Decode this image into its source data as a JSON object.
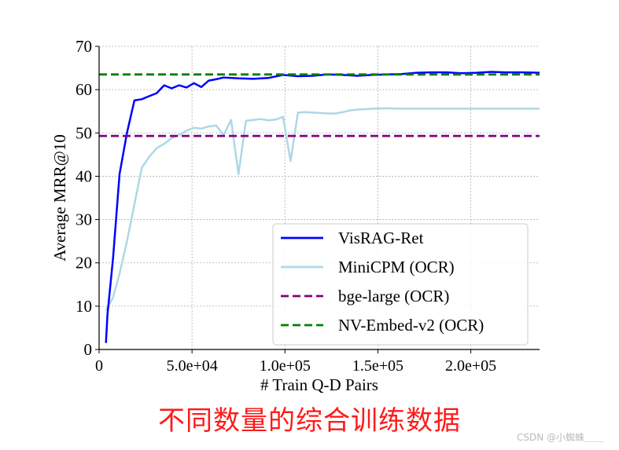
{
  "chart_data": {
    "type": "line",
    "xlabel": "# Train Q-D Pairs",
    "ylabel": "Average MRR@10",
    "xlim": [
      0,
      237000
    ],
    "ylim": [
      0,
      70
    ],
    "grid": true,
    "legend_position": "bottom-right",
    "x_ticks": [
      {
        "value": 0,
        "label": "0"
      },
      {
        "value": 50000,
        "label": "5.0e+04"
      },
      {
        "value": 100000,
        "label": "1.0e+05"
      },
      {
        "value": 150000,
        "label": "1.5e+05"
      },
      {
        "value": 200000,
        "label": "2.0e+05"
      }
    ],
    "y_ticks": [
      0,
      10,
      20,
      30,
      40,
      50,
      60,
      70
    ],
    "series": [
      {
        "name": "VisRAG-Ret",
        "color": "#0000ff",
        "dash": "solid",
        "x": [
          3700,
          4500,
          7500,
          11000,
          15000,
          19000,
          23000,
          27000,
          31000,
          35000,
          39000,
          43000,
          47000,
          51000,
          55000,
          59000,
          63000,
          67000,
          75000,
          83000,
          91000,
          99000,
          107000,
          115000,
          123000,
          131000,
          139000,
          147000,
          155000,
          163000,
          171000,
          179000,
          187000,
          195000,
          203000,
          211000,
          219000,
          227000,
          237000
        ],
        "y": [
          1.5,
          8,
          21,
          40.5,
          50,
          57.5,
          57.8,
          58.5,
          59.2,
          61,
          60.3,
          61,
          60.5,
          61.5,
          60.6,
          62.1,
          62.4,
          62.8,
          62.6,
          62.5,
          62.7,
          63.4,
          63.1,
          63.2,
          63.5,
          63.4,
          63.2,
          63.4,
          63.5,
          63.6,
          63.9,
          64,
          64,
          63.8,
          63.9,
          64.1,
          64,
          64,
          63.9
        ]
      },
      {
        "name": "MiniCPM (OCR)",
        "color": "#add8e6",
        "dash": "solid",
        "x": [
          3700,
          7500,
          11000,
          15000,
          19000,
          23000,
          27000,
          31000,
          35000,
          39000,
          43000,
          47000,
          51000,
          55000,
          59000,
          63000,
          67000,
          71000,
          75000,
          79000,
          83000,
          87000,
          91000,
          95000,
          99000,
          103000,
          107000,
          111000,
          115000,
          119000,
          123000,
          127000,
          131000,
          135000,
          139000,
          143000,
          147000,
          155000,
          163000,
          171000,
          179000,
          187000,
          195000,
          203000,
          211000,
          219000,
          227000,
          237000
        ],
        "y": [
          9,
          12,
          17.5,
          25,
          33.5,
          42,
          44.5,
          46.5,
          47.5,
          48.8,
          49.5,
          50.5,
          51.2,
          51,
          51.5,
          51.7,
          49.5,
          53,
          40.5,
          52.8,
          53,
          53.2,
          52.9,
          53.1,
          53.7,
          43.5,
          54.7,
          54.8,
          54.7,
          54.6,
          54.5,
          54.5,
          54.8,
          55.2,
          55.4,
          55.5,
          55.6,
          55.7,
          55.6,
          55.6,
          55.6,
          55.6,
          55.6,
          55.6,
          55.6,
          55.6,
          55.6,
          55.6
        ]
      },
      {
        "name": "bge-large (OCR)",
        "color": "#800080",
        "dash": "dashed",
        "x": [
          0,
          237000
        ],
        "y": [
          49.3,
          49.3
        ]
      },
      {
        "name": "NV-Embed-v2 (OCR)",
        "color": "#008000",
        "dash": "dashed",
        "x": [
          0,
          237000
        ],
        "y": [
          63.5,
          63.5
        ]
      }
    ]
  },
  "caption": "不同数量的综合训练数据",
  "watermark": "CSDN @小蜘蛛＿＿"
}
